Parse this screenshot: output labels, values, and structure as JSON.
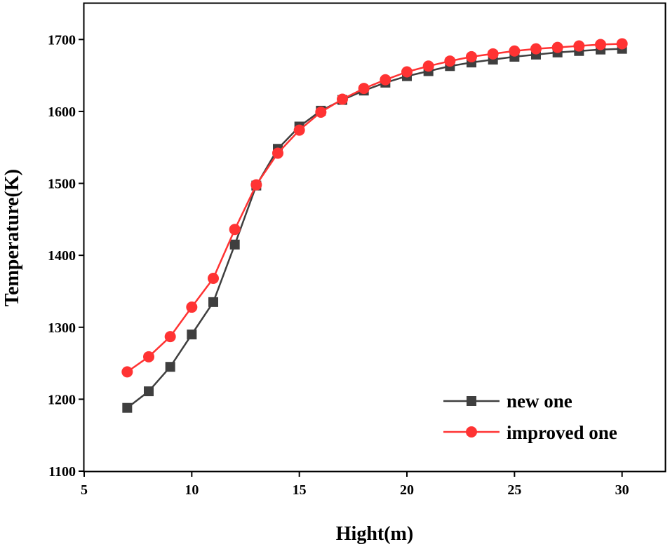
{
  "chart_data": {
    "type": "line",
    "title": "",
    "xlabel": "Hight(m)",
    "ylabel": "Temperature(K)",
    "xlim": [
      5,
      32
    ],
    "ylim": [
      1100,
      1750
    ],
    "xticks": [
      5,
      10,
      15,
      20,
      25,
      30
    ],
    "yticks": [
      1100,
      1200,
      1300,
      1400,
      1500,
      1600,
      1700
    ],
    "grid": false,
    "legend_position": "bottom-right",
    "x": [
      7,
      8,
      9,
      10,
      11,
      12,
      13,
      14,
      15,
      16,
      17,
      18,
      19,
      20,
      21,
      22,
      23,
      24,
      25,
      26,
      27,
      28,
      29,
      30
    ],
    "series": [
      {
        "name": "new one",
        "color": "#3f3f3f",
        "marker": "square",
        "values": [
          1188,
          1211,
          1245,
          1290,
          1335,
          1415,
          1497,
          1548,
          1579,
          1601,
          1616,
          1629,
          1640,
          1649,
          1656,
          1663,
          1668,
          1672,
          1676,
          1679,
          1682,
          1684,
          1686,
          1687
        ]
      },
      {
        "name": "improved one",
        "color": "#ff3333",
        "marker": "circle",
        "values": [
          1238,
          1259,
          1287,
          1328,
          1368,
          1436,
          1498,
          1542,
          1574,
          1599,
          1617,
          1632,
          1644,
          1655,
          1663,
          1670,
          1676,
          1680,
          1684,
          1687,
          1689,
          1691,
          1693,
          1694
        ]
      }
    ]
  }
}
